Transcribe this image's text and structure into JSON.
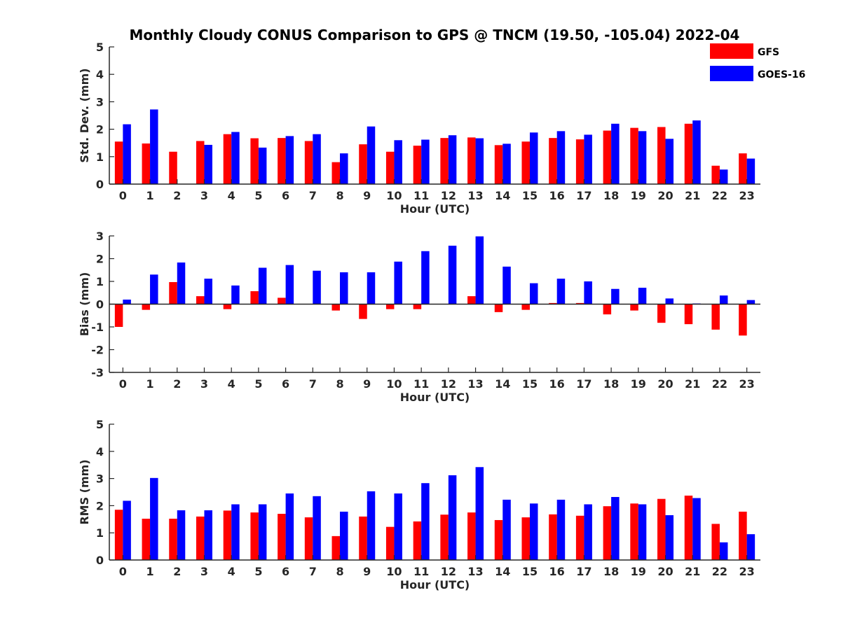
{
  "colors": {
    "GFS": "#ff0000",
    "GOES-16": "#0000ff",
    "axis": "#262626"
  },
  "chart_data": {
    "type": "bar",
    "title": "Monthly Cloudy CONUS Comparison to GPS @ TNCM (19.50, -105.04) 2022-04",
    "legend": {
      "placement": "top-right",
      "entries": [
        "GFS",
        "GOES-16"
      ]
    },
    "categories": [
      0,
      1,
      2,
      3,
      4,
      5,
      6,
      7,
      8,
      9,
      10,
      11,
      12,
      13,
      14,
      15,
      16,
      17,
      18,
      19,
      20,
      21,
      22,
      23
    ],
    "panels": [
      {
        "id": "std",
        "type": "bar",
        "xlabel": "Hour (UTC)",
        "ylabel": "Std. Dev. (mm)",
        "ylim": [
          0,
          5
        ],
        "yticks": [
          0,
          1,
          2,
          3,
          4,
          5
        ],
        "grid": false,
        "series": [
          {
            "name": "GFS",
            "values": [
              1.55,
              1.48,
              1.18,
              1.57,
              1.82,
              1.67,
              1.68,
              1.57,
              0.8,
              1.45,
              1.18,
              1.4,
              1.68,
              1.7,
              1.42,
              1.55,
              1.68,
              1.63,
              1.95,
              2.05,
              2.08,
              2.2,
              0.67,
              1.12
            ]
          },
          {
            "name": "GOES-16",
            "values": [
              2.18,
              2.72,
              0.0,
              1.43,
              1.9,
              1.33,
              1.75,
              1.82,
              1.12,
              2.1,
              1.6,
              1.62,
              1.78,
              1.67,
              1.47,
              1.88,
              1.93,
              1.8,
              2.2,
              1.93,
              1.65,
              2.32,
              0.53,
              0.93
            ]
          }
        ]
      },
      {
        "id": "bias",
        "type": "bar",
        "xlabel": "Hour (UTC)",
        "ylabel": "Bias (mm)",
        "ylim": [
          -3,
          3
        ],
        "yticks": [
          -3,
          -2,
          -1,
          0,
          1,
          2,
          3
        ],
        "grid": false,
        "series": [
          {
            "name": "GFS",
            "values": [
              -1.0,
              -0.25,
              0.97,
              0.35,
              -0.22,
              0.57,
              0.28,
              0.0,
              -0.28,
              -0.65,
              -0.22,
              -0.22,
              0.0,
              0.35,
              -0.35,
              -0.25,
              0.05,
              0.05,
              -0.45,
              -0.28,
              -0.82,
              -0.88,
              -1.12,
              -1.38
            ]
          },
          {
            "name": "GOES-16",
            "values": [
              0.2,
              1.3,
              1.83,
              1.12,
              0.82,
              1.6,
              1.72,
              1.47,
              1.4,
              1.4,
              1.87,
              2.33,
              2.57,
              2.98,
              1.65,
              0.92,
              1.12,
              1.0,
              0.67,
              0.72,
              0.25,
              0.03,
              0.38,
              0.18
            ]
          }
        ]
      },
      {
        "id": "rms",
        "type": "bar",
        "xlabel": "Hour (UTC)",
        "ylabel": "RMS (mm)",
        "ylim": [
          0,
          5
        ],
        "yticks": [
          0,
          1,
          2,
          3,
          4,
          5
        ],
        "grid": false,
        "series": [
          {
            "name": "GFS",
            "values": [
              1.85,
              1.52,
              1.52,
              1.6,
              1.82,
              1.75,
              1.7,
              1.57,
              0.88,
              1.6,
              1.22,
              1.42,
              1.67,
              1.75,
              1.47,
              1.57,
              1.68,
              1.63,
              1.98,
              2.08,
              2.25,
              2.37,
              1.33,
              1.78
            ]
          },
          {
            "name": "GOES-16",
            "values": [
              2.18,
              3.02,
              1.83,
              1.83,
              2.05,
              2.05,
              2.45,
              2.35,
              1.78,
              2.53,
              2.45,
              2.83,
              3.12,
              3.42,
              2.22,
              2.08,
              2.22,
              2.05,
              2.32,
              2.05,
              1.65,
              2.28,
              0.65,
              0.95
            ]
          }
        ]
      }
    ]
  }
}
